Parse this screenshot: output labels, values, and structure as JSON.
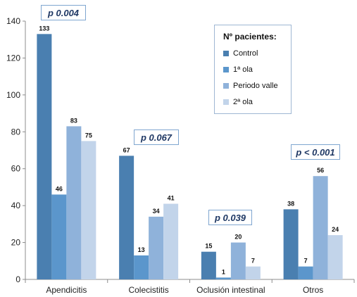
{
  "chart_data": {
    "type": "bar",
    "categories": [
      "Apendicitis",
      "Colecistitis",
      "Oclusión intestinal",
      "Otros"
    ],
    "series": [
      {
        "name": "Control",
        "values": [
          133,
          67,
          15,
          38
        ],
        "color": "#4a7fb0"
      },
      {
        "name": "1ª ola",
        "values": [
          46,
          13,
          1,
          7
        ],
        "color": "#5b96cc"
      },
      {
        "name": "Periodo valle",
        "values": [
          83,
          34,
          20,
          56
        ],
        "color": "#8fb2da"
      },
      {
        "name": "2ª ola",
        "values": [
          75,
          41,
          7,
          24
        ],
        "color": "#c2d4ea"
      }
    ],
    "ylim": [
      0,
      140
    ],
    "yticks": [
      "0",
      "20",
      "40",
      "60",
      "80",
      "100",
      "120",
      "140"
    ],
    "bar_labels": [
      [
        "133",
        "67",
        "15",
        "38"
      ],
      [
        "46",
        "13",
        "1",
        "7"
      ],
      [
        "83",
        "34",
        "20",
        "56"
      ],
      [
        "75",
        "41",
        "7",
        "24"
      ]
    ],
    "annotations": [
      "p 0.004",
      "p 0.067",
      "p 0.039",
      "p < 0.001"
    ],
    "legend_title": "Nº pacientes:",
    "legend_placement": "top-right",
    "grid": false
  }
}
